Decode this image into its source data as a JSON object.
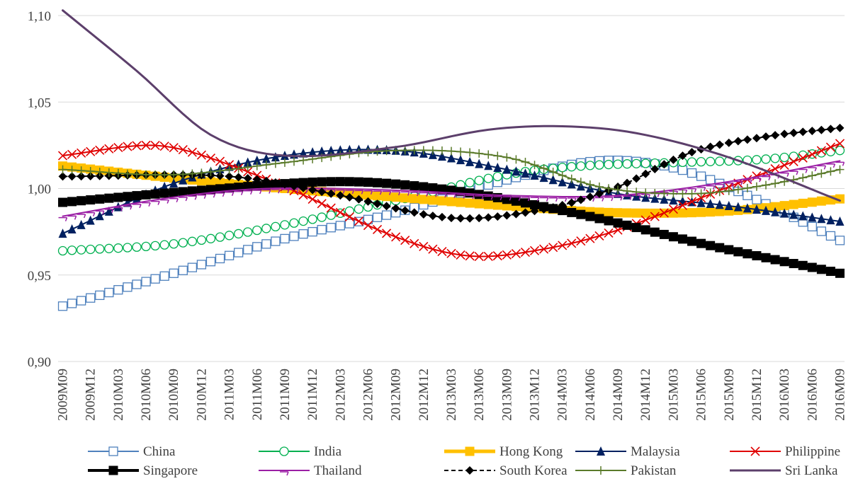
{
  "chart_data": {
    "type": "line",
    "title": "",
    "xlabel": "",
    "ylabel": "",
    "ylim": [
      0.9,
      1.1
    ],
    "y_ticks": [
      0.9,
      0.95,
      1.0,
      1.05,
      1.1
    ],
    "y_tick_labels": [
      "0,90",
      "0,95",
      "1,00",
      "1,05",
      "1,10"
    ],
    "grid": "horizontal",
    "legend_position": "bottom",
    "x": [
      "2009M09",
      "2009M10",
      "2009M11",
      "2009M12",
      "2010M01",
      "2010M02",
      "2010M03",
      "2010M04",
      "2010M05",
      "2010M06",
      "2010M07",
      "2010M08",
      "2010M09",
      "2010M10",
      "2010M11",
      "2010M12",
      "2011M01",
      "2011M02",
      "2011M03",
      "2011M04",
      "2011M05",
      "2011M06",
      "2011M07",
      "2011M08",
      "2011M09",
      "2011M10",
      "2011M11",
      "2011M12",
      "2012M01",
      "2012M02",
      "2012M03",
      "2012M04",
      "2012M05",
      "2012M06",
      "2012M07",
      "2012M08",
      "2012M09",
      "2012M10",
      "2012M11",
      "2012M12",
      "2013M01",
      "2013M02",
      "2013M03",
      "2013M04",
      "2013M05",
      "2013M06",
      "2013M07",
      "2013M08",
      "2013M09",
      "2013M10",
      "2013M11",
      "2013M12",
      "2014M01",
      "2014M02",
      "2014M03",
      "2014M04",
      "2014M05",
      "2014M06",
      "2014M07",
      "2014M08",
      "2014M09",
      "2014M10",
      "2014M11",
      "2014M12",
      "2015M01",
      "2015M02",
      "2015M03",
      "2015M04",
      "2015M05",
      "2015M06",
      "2015M07",
      "2015M08",
      "2015M09",
      "2015M10",
      "2015M11",
      "2015M12",
      "2016M01",
      "2016M02",
      "2016M03",
      "2016M04",
      "2016M05",
      "2016M06",
      "2016M07",
      "2016M08",
      "2016M09"
    ],
    "x_tick_labels": [
      "2009M09",
      "2009M12",
      "2010M03",
      "2010M06",
      "2010M09",
      "2010M12",
      "2011M03",
      "2011M06",
      "2011M09",
      "2011M12",
      "2012M03",
      "2012M06",
      "2012M09",
      "2012M12",
      "2013M03",
      "2013M06",
      "2013M09",
      "2013M12",
      "2014M03",
      "2014M06",
      "2014M09",
      "2014M12",
      "2015M03",
      "2015M06",
      "2015M09",
      "2015M12",
      "2016M03",
      "2016M06",
      "2016M09"
    ],
    "series": [
      {
        "name": "China",
        "color": "#4f81bd",
        "marker": "square-open",
        "width": 2,
        "knots": [
          [
            0,
            0.932
          ],
          [
            12,
            0.951
          ],
          [
            24,
            0.971
          ],
          [
            36,
            0.986
          ],
          [
            48,
            1.005
          ],
          [
            58,
            1.016
          ],
          [
            66,
            1.012
          ],
          [
            74,
            0.996
          ],
          [
            84,
            0.97
          ]
        ]
      },
      {
        "name": "India",
        "color": "#00b050",
        "marker": "circle-open",
        "width": 2,
        "knots": [
          [
            0,
            0.964
          ],
          [
            12,
            0.968
          ],
          [
            24,
            0.979
          ],
          [
            36,
            0.993
          ],
          [
            48,
            1.008
          ],
          [
            56,
            1.013
          ],
          [
            66,
            1.015
          ],
          [
            76,
            1.017
          ],
          [
            84,
            1.022
          ]
        ]
      },
      {
        "name": "Hong Kong",
        "color": "#ffc000",
        "marker": "square-filled",
        "width": 10,
        "knots": [
          [
            0,
            1.013
          ],
          [
            12,
            1.006
          ],
          [
            24,
            1.0
          ],
          [
            36,
            0.995
          ],
          [
            48,
            0.99
          ],
          [
            60,
            0.986
          ],
          [
            72,
            0.987
          ],
          [
            84,
            0.994
          ]
        ]
      },
      {
        "name": "Malaysia",
        "color": "#002060",
        "marker": "triangle-filled",
        "width": 2,
        "knots": [
          [
            0,
            0.974
          ],
          [
            12,
            1.003
          ],
          [
            24,
            1.019
          ],
          [
            36,
            1.022
          ],
          [
            48,
            1.011
          ],
          [
            60,
            0.997
          ],
          [
            72,
            0.99
          ],
          [
            84,
            0.981
          ]
        ]
      },
      {
        "name": "Philippine",
        "color": "#e00000",
        "marker": "x",
        "width": 2,
        "knots": [
          [
            0,
            1.019
          ],
          [
            9,
            1.025
          ],
          [
            14,
            1.021
          ],
          [
            24,
            1.001
          ],
          [
            36,
            0.972
          ],
          [
            44,
            0.961
          ],
          [
            52,
            0.965
          ],
          [
            60,
            0.976
          ],
          [
            72,
            1.001
          ],
          [
            84,
            1.026
          ]
        ]
      },
      {
        "name": "Singapore",
        "color": "#000000",
        "marker": "square-filled",
        "width": 7,
        "knots": [
          [
            0,
            0.992
          ],
          [
            15,
            0.999
          ],
          [
            30,
            1.004
          ],
          [
            42,
            0.999
          ],
          [
            56,
            0.985
          ],
          [
            70,
            0.967
          ],
          [
            84,
            0.951
          ]
        ]
      },
      {
        "name": "Thailand",
        "color": "#9b1fa5",
        "marker": "tick",
        "width": 2,
        "knots": [
          [
            0,
            0.984
          ],
          [
            12,
            0.995
          ],
          [
            22,
            1.0
          ],
          [
            36,
            0.999
          ],
          [
            48,
            0.996
          ],
          [
            60,
            0.996
          ],
          [
            72,
            1.004
          ],
          [
            84,
            1.016
          ]
        ]
      },
      {
        "name": "South Korea",
        "color": "#000000",
        "marker": "diamond-filled",
        "width": 2,
        "dash": true,
        "knots": [
          [
            0,
            1.007
          ],
          [
            18,
            1.007
          ],
          [
            30,
            0.996
          ],
          [
            42,
            0.983
          ],
          [
            52,
            0.988
          ],
          [
            60,
            1.001
          ],
          [
            68,
            1.021
          ],
          [
            76,
            1.03
          ],
          [
            84,
            1.035
          ]
        ]
      },
      {
        "name": "Pakistan",
        "color": "#5a7a2a",
        "marker": "plus",
        "width": 2,
        "knots": [
          [
            0,
            1.011
          ],
          [
            12,
            1.008
          ],
          [
            24,
            1.015
          ],
          [
            36,
            1.022
          ],
          [
            48,
            1.018
          ],
          [
            58,
            1.001
          ],
          [
            68,
            0.997
          ],
          [
            76,
            1.002
          ],
          [
            84,
            1.011
          ]
        ]
      },
      {
        "name": "Sri Lanka",
        "color": "#5c3f6b",
        "marker": "none",
        "width": 3,
        "knots": [
          [
            0,
            1.103
          ],
          [
            8,
            1.068
          ],
          [
            16,
            1.031
          ],
          [
            24,
            1.019
          ],
          [
            36,
            1.024
          ],
          [
            46,
            1.034
          ],
          [
            54,
            1.036
          ],
          [
            62,
            1.032
          ],
          [
            72,
            1.018
          ],
          [
            84,
            0.993
          ]
        ]
      }
    ]
  }
}
